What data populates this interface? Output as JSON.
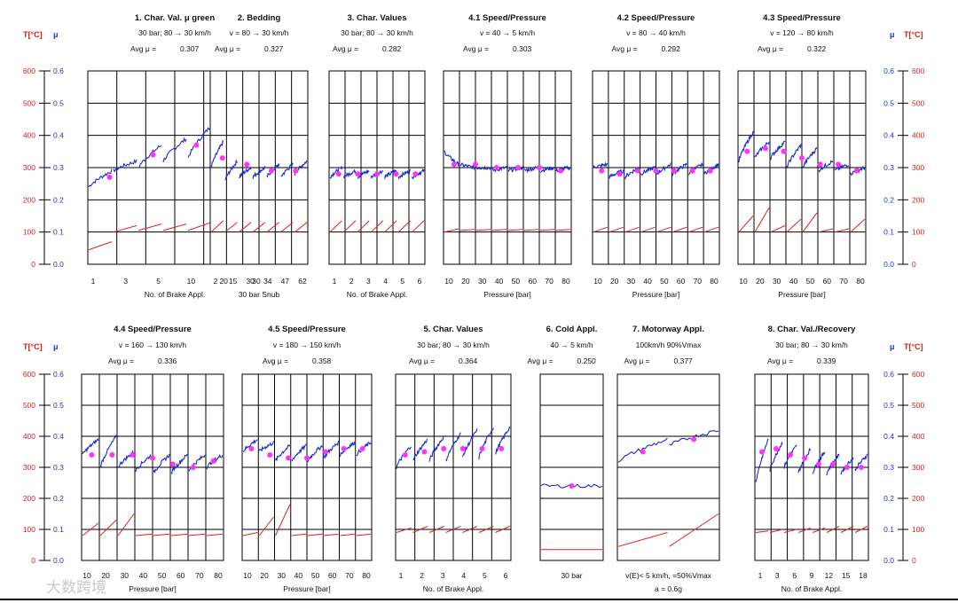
{
  "watermark": "大数跨境",
  "axis_labels": {
    "temp": "T[°C]",
    "mu": "μ",
    "temp_ticks": [
      "0",
      "100",
      "200",
      "300",
      "400",
      "500",
      "600"
    ],
    "mu_ticks": [
      "0.0",
      "0.1",
      "0.2",
      "0.3",
      "0.4",
      "0.5",
      "0.6"
    ]
  },
  "colors": {
    "mu_line": "#1a2bd6",
    "temp_line": "#e0201a",
    "marker": "#ff33ff",
    "grid": "#000000"
  },
  "chart_data": [
    {
      "type": "line",
      "title": "1. Char. Val. μ green",
      "subtitle": "30 bar; 80 → 30 km/h",
      "avg_label": "Avg  μ  =",
      "avg_value": "0.307",
      "ticks": [
        "1",
        "3",
        "5",
        "10",
        "20",
        "30"
      ],
      "xlabel": "No. of Brake Appl.",
      "ylim": [
        0,
        0.6
      ],
      "mu_segments": [
        [
          0.24,
          0.29
        ],
        [
          0.29,
          0.32
        ],
        [
          0.3,
          0.37
        ],
        [
          0.32,
          0.39
        ],
        [
          0.33,
          0.43
        ],
        [
          0.29,
          0.37
        ],
        [
          0.33,
          0.39
        ]
      ],
      "mu_markers": [
        0.27,
        0.34,
        0.37,
        0.35
      ],
      "temp_segments": [
        [
          45,
          70
        ],
        [
          100,
          120
        ],
        [
          105,
          125
        ],
        [
          105,
          125
        ],
        [
          105,
          130
        ],
        [
          105,
          130
        ],
        [
          105,
          140
        ]
      ]
    },
    {
      "type": "line",
      "title": "2. Bedding",
      "subtitle": "v = 80 → 30 km/h",
      "avg_label": "Avg  μ  =",
      "avg_value": "0.327",
      "ticks": [
        "2",
        "15",
        "30",
        "34",
        "47",
        "62"
      ],
      "xlabel": "30 bar Snub",
      "ylim": [
        0,
        0.6
      ],
      "mu_segments": [
        [
          0.3,
          0.38
        ],
        [
          0.26,
          0.32
        ],
        [
          0.27,
          0.3
        ],
        [
          0.27,
          0.3
        ],
        [
          0.27,
          0.31
        ],
        [
          0.27,
          0.31
        ],
        [
          0.28,
          0.32
        ]
      ],
      "mu_markers": [
        0.33,
        0.31,
        0.29,
        0.29
      ],
      "temp_segments": [
        [
          100,
          135
        ],
        [
          100,
          130
        ],
        [
          100,
          130
        ],
        [
          100,
          130
        ],
        [
          100,
          130
        ],
        [
          100,
          130
        ],
        [
          100,
          130
        ]
      ]
    },
    {
      "type": "line",
      "title": "3. Char. Values",
      "subtitle": "30 bar; 80 → 30 km/h",
      "avg_label": "Avg  μ  =",
      "avg_value": "0.282",
      "ticks": [
        "1",
        "2",
        "3",
        "4",
        "5",
        "6"
      ],
      "xlabel": "No. of Brake Appl.",
      "ylim": [
        0,
        0.6
      ],
      "mu_segments": [
        [
          0.27,
          0.3
        ],
        [
          0.27,
          0.29
        ],
        [
          0.27,
          0.29
        ],
        [
          0.27,
          0.29
        ],
        [
          0.27,
          0.29
        ],
        [
          0.27,
          0.29
        ],
        [
          0.27,
          0.29
        ]
      ],
      "mu_markers": [
        0.28,
        0.28,
        0.28,
        0.28,
        0.28
      ],
      "temp_segments": [
        [
          100,
          135
        ],
        [
          100,
          135
        ],
        [
          100,
          135
        ],
        [
          100,
          135
        ],
        [
          100,
          135
        ],
        [
          100,
          135
        ],
        [
          100,
          135
        ]
      ]
    },
    {
      "type": "line",
      "title": "4.1 Speed/Pressure",
      "subtitle": "v = 40 → 5 km/h",
      "avg_label": "Avg  μ  =",
      "avg_value": "0.303",
      "ticks": [
        "10",
        "20",
        "30",
        "40",
        "50",
        "60",
        "70",
        "80"
      ],
      "xlabel": "Pressure [bar]",
      "ylim": [
        0,
        0.6
      ],
      "mu_segments": [
        [
          0.35,
          0.31
        ],
        [
          0.31,
          0.3
        ],
        [
          0.3,
          0.3
        ],
        [
          0.29,
          0.3
        ],
        [
          0.29,
          0.3
        ],
        [
          0.29,
          0.3
        ],
        [
          0.29,
          0.3
        ],
        [
          0.29,
          0.3
        ]
      ],
      "mu_markers": [
        0.31,
        0.31,
        0.3,
        0.3,
        0.3,
        0.29
      ],
      "temp_segments": [
        [
          100,
          110
        ],
        [
          105,
          108
        ],
        [
          105,
          108
        ],
        [
          105,
          108
        ],
        [
          105,
          108
        ],
        [
          105,
          108
        ],
        [
          105,
          108
        ],
        [
          105,
          108
        ]
      ]
    },
    {
      "type": "line",
      "title": "4.2 Speed/Pressure",
      "subtitle": "v = 80 → 40 km/h",
      "avg_label": "Avg  μ  =",
      "avg_value": "0.292",
      "ticks": [
        "10",
        "20",
        "30",
        "40",
        "50",
        "60",
        "70",
        "80"
      ],
      "xlabel": "Pressure [bar]",
      "ylim": [
        0,
        0.6
      ],
      "mu_segments": [
        [
          0.3,
          0.31
        ],
        [
          0.27,
          0.29
        ],
        [
          0.27,
          0.3
        ],
        [
          0.28,
          0.3
        ],
        [
          0.28,
          0.31
        ],
        [
          0.28,
          0.31
        ],
        [
          0.28,
          0.31
        ],
        [
          0.28,
          0.31
        ]
      ],
      "mu_markers": [
        0.29,
        0.28,
        0.29,
        0.29,
        0.29,
        0.29,
        0.29
      ],
      "temp_segments": [
        [
          100,
          115
        ],
        [
          100,
          115
        ],
        [
          100,
          115
        ],
        [
          100,
          115
        ],
        [
          100,
          115
        ],
        [
          100,
          115
        ],
        [
          100,
          115
        ],
        [
          100,
          115
        ]
      ]
    },
    {
      "type": "line",
      "title": "4.3 Speed/Pressure",
      "subtitle": "v = 120 → 80 km/h",
      "avg_label": "Avg  μ  =",
      "avg_value": "0.322",
      "ticks": [
        "10",
        "20",
        "30",
        "40",
        "50",
        "60",
        "70",
        "80"
      ],
      "xlabel": "Pressure [bar]",
      "ylim": [
        0,
        0.6
      ],
      "mu_segments": [
        [
          0.32,
          0.41
        ],
        [
          0.33,
          0.38
        ],
        [
          0.33,
          0.38
        ],
        [
          0.3,
          0.37
        ],
        [
          0.3,
          0.36
        ],
        [
          0.29,
          0.32
        ],
        [
          0.29,
          0.31
        ],
        [
          0.28,
          0.3
        ]
      ],
      "mu_markers": [
        0.35,
        0.36,
        0.35,
        0.33,
        0.31,
        0.31,
        0.29
      ],
      "temp_segments": [
        [
          100,
          150
        ],
        [
          100,
          175
        ],
        [
          100,
          120
        ],
        [
          100,
          140
        ],
        [
          100,
          160
        ],
        [
          100,
          110
        ],
        [
          100,
          110
        ],
        [
          100,
          140
        ]
      ]
    },
    {
      "type": "line",
      "title": "4.4 Speed/Pressure",
      "subtitle": "v = 160 → 130 km/h",
      "avg_label": "Avg  μ  =",
      "avg_value": "0.336",
      "ticks": [
        "10",
        "20",
        "30",
        "40",
        "50",
        "60",
        "70",
        "80"
      ],
      "xlabel": "Pressure [bar]",
      "ylim": [
        0,
        0.6
      ],
      "mu_segments": [
        [
          0.34,
          0.39
        ],
        [
          0.3,
          0.4
        ],
        [
          0.3,
          0.35
        ],
        [
          0.29,
          0.34
        ],
        [
          0.28,
          0.34
        ],
        [
          0.28,
          0.34
        ],
        [
          0.29,
          0.34
        ],
        [
          0.3,
          0.34
        ]
      ],
      "mu_markers": [
        0.34,
        0.34,
        0.34,
        0.33,
        0.31,
        0.3,
        0.32
      ],
      "temp_segments": [
        [
          80,
          120
        ],
        [
          80,
          130
        ],
        [
          80,
          150
        ],
        [
          80,
          85
        ],
        [
          80,
          85
        ],
        [
          80,
          85
        ],
        [
          80,
          85
        ],
        [
          80,
          85
        ]
      ]
    },
    {
      "type": "line",
      "title": "4.5 Speed/Pressure",
      "subtitle": "v = 180 → 150 km/h",
      "avg_label": "Avg  μ  =",
      "avg_value": "0.358",
      "ticks": [
        "10",
        "20",
        "30",
        "40",
        "50",
        "60",
        "70",
        "80"
      ],
      "xlabel": "Pressure [bar]",
      "ylim": [
        0,
        0.6
      ],
      "mu_segments": [
        [
          0.35,
          0.39
        ],
        [
          0.35,
          0.38
        ],
        [
          0.32,
          0.37
        ],
        [
          0.32,
          0.37
        ],
        [
          0.32,
          0.37
        ],
        [
          0.33,
          0.38
        ],
        [
          0.34,
          0.38
        ],
        [
          0.34,
          0.38
        ]
      ],
      "mu_markers": [
        0.36,
        0.34,
        0.33,
        0.33,
        0.35,
        0.36,
        0.36
      ],
      "temp_segments": [
        [
          80,
          90
        ],
        [
          80,
          140
        ],
        [
          80,
          180
        ],
        [
          80,
          85
        ],
        [
          80,
          85
        ],
        [
          80,
          85
        ],
        [
          80,
          85
        ],
        [
          80,
          85
        ]
      ]
    },
    {
      "type": "line",
      "title": "5. Char. Values",
      "subtitle": "30 bar; 80 → 30 km/h",
      "avg_label": "Avg  μ  =",
      "avg_value": "0.364",
      "ticks": [
        "1",
        "2",
        "3",
        "4",
        "5",
        "6"
      ],
      "xlabel": "No. of Brake Appl.",
      "ylim": [
        0,
        0.6
      ],
      "mu_segments": [
        [
          0.3,
          0.37
        ],
        [
          0.32,
          0.39
        ],
        [
          0.32,
          0.4
        ],
        [
          0.32,
          0.41
        ],
        [
          0.33,
          0.42
        ],
        [
          0.33,
          0.43
        ],
        [
          0.34,
          0.43
        ]
      ],
      "mu_markers": [
        0.34,
        0.35,
        0.36,
        0.36,
        0.36,
        0.36
      ],
      "temp_segments": [
        [
          90,
          105
        ],
        [
          90,
          110
        ],
        [
          90,
          110
        ],
        [
          90,
          110
        ],
        [
          90,
          110
        ],
        [
          90,
          110
        ],
        [
          90,
          110
        ]
      ]
    },
    {
      "type": "line",
      "title": "6. Cold Appl.",
      "subtitle": "40 → 5 km/h",
      "avg_label": "Avg  μ  =",
      "avg_value": "0.250",
      "ticks": [
        "30 bar"
      ],
      "xlabel": "",
      "ylim": [
        0,
        0.6
      ],
      "mu_segments": [
        [
          0.24,
          0.24
        ]
      ],
      "mu_markers": [
        0.24
      ],
      "temp_segments": [
        [
          35,
          35
        ]
      ]
    },
    {
      "type": "line",
      "title": "7. Motorway Appl.",
      "subtitle": "100km/h      90%Vmax",
      "avg_label": "Avg  μ  =",
      "avg_value": "0.377",
      "ticks": [
        "v(E)< 5 km/h,    =50%Vmax",
        "a = 0.6g"
      ],
      "xlabel": "",
      "ylim": [
        0,
        0.6
      ],
      "mu_segments": [
        [
          0.32,
          0.39
        ],
        [
          0.37,
          0.42
        ]
      ],
      "mu_markers": [
        0.35,
        0.39
      ],
      "temp_segments": [
        [
          45,
          90
        ],
        [
          45,
          150
        ]
      ]
    },
    {
      "type": "line",
      "title": "8. Char. Val./Recovery",
      "subtitle": "30 bar; 80 → 30 km/h",
      "avg_label": "Avg  μ  =",
      "avg_value": "0.339",
      "ticks": [
        "1",
        "3",
        "6",
        "9",
        "12",
        "15",
        "18"
      ],
      "xlabel": "No. of Brake Appl.",
      "ylim": [
        0,
        0.6
      ],
      "mu_segments": [
        [
          0.25,
          0.39
        ],
        [
          0.29,
          0.38
        ],
        [
          0.3,
          0.37
        ],
        [
          0.28,
          0.36
        ],
        [
          0.28,
          0.35
        ],
        [
          0.28,
          0.34
        ],
        [
          0.28,
          0.33
        ],
        [
          0.29,
          0.34
        ]
      ],
      "mu_markers": [
        0.35,
        0.36,
        0.34,
        0.33,
        0.31,
        0.31,
        0.3,
        0.3
      ],
      "temp_segments": [
        [
          90,
          95
        ],
        [
          90,
          100
        ],
        [
          90,
          100
        ],
        [
          90,
          105
        ],
        [
          90,
          105
        ],
        [
          90,
          110
        ],
        [
          90,
          110
        ],
        [
          90,
          110
        ]
      ]
    }
  ]
}
